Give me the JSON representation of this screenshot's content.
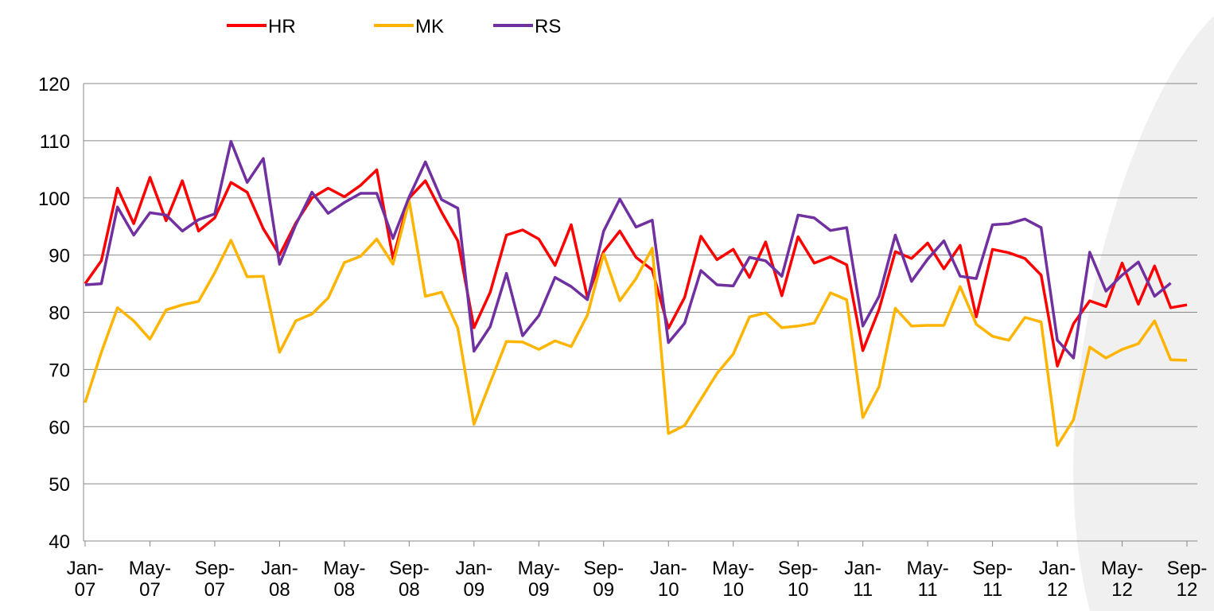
{
  "chart_data": {
    "type": "line",
    "categories": [
      "Jan-07",
      null,
      null,
      null,
      "May-07",
      null,
      null,
      null,
      "Sep-07",
      null,
      null,
      null,
      "Jan-08",
      null,
      null,
      null,
      "May-08",
      null,
      null,
      null,
      "Sep-08",
      null,
      null,
      null,
      "Jan-09",
      null,
      null,
      null,
      "May-09",
      null,
      null,
      null,
      "Sep-09",
      null,
      null,
      null,
      "Jan-10",
      null,
      null,
      null,
      "May-10",
      null,
      null,
      null,
      "Sep-10",
      null,
      null,
      null,
      "Jan-11",
      null,
      null,
      null,
      "May-11",
      null,
      null,
      null,
      "Sep-11",
      null,
      null,
      null,
      "Jan-12",
      null,
      null,
      null,
      "May-12",
      null,
      null,
      null,
      "Sep-12"
    ],
    "series": [
      {
        "name": "HR",
        "color": "#ff0000",
        "values": [
          85,
          89,
          101.7,
          95.5,
          103.6,
          96,
          103,
          94.2,
          96.5,
          102.7,
          101,
          94.6,
          90,
          95.6,
          100,
          101.7,
          100.2,
          102.2,
          104.9,
          89.4,
          100,
          103,
          97.5,
          92.5,
          77.3,
          83.5,
          93.5,
          94.4,
          92.8,
          88.2,
          95.3,
          82.6,
          90.6,
          94.2,
          89.6,
          87.4,
          77.2,
          82.6,
          93.3,
          89.2,
          91,
          86.1,
          92.3,
          82.9,
          93.2,
          88.6,
          89.7,
          88.3,
          73.3,
          80.5,
          90.6,
          89.4,
          92.1,
          87.6,
          91.7,
          79.2,
          91,
          90.4,
          89.4,
          86.5,
          70.6,
          78,
          82,
          81,
          88.6,
          81.4,
          88.1,
          80.8,
          81.3
        ]
      },
      {
        "name": "MK",
        "color": "#ffb400",
        "values": [
          64.2,
          73,
          80.8,
          78.5,
          75.3,
          80.4,
          81.3,
          81.9,
          86.9,
          92.6,
          86.2,
          86.3,
          73,
          78.5,
          79.7,
          82.5,
          88.7,
          89.8,
          92.8,
          88.4,
          99.5,
          82.8,
          83.5,
          77.2,
          60.4,
          67.7,
          74.9,
          74.8,
          73.5,
          75,
          74,
          79.5,
          90.2,
          82,
          85.9,
          91.2,
          58.8,
          60.2,
          64.8,
          69.3,
          72.7,
          79.2,
          79.9,
          77.3,
          77.6,
          78.1,
          83.4,
          82.2,
          61.6,
          67,
          80.7,
          77.6,
          77.7,
          77.7,
          84.5,
          77.9,
          75.8,
          75.1,
          79.1,
          78.3,
          56.7,
          61.2,
          73.9,
          72,
          73.5,
          74.5,
          78.5,
          71.7,
          71.6
        ]
      },
      {
        "name": "RS",
        "color": "#7030a0",
        "values": [
          84.8,
          85,
          98.4,
          93.5,
          97.4,
          97,
          94.2,
          96.2,
          97.2,
          109.9,
          102.7,
          106.9,
          88.4,
          95.3,
          101,
          97.3,
          99.2,
          100.8,
          100.8,
          92.9,
          100.2,
          106.3,
          99.7,
          98.2,
          73.2,
          77.5,
          86.8,
          75.9,
          79.4,
          86.1,
          84.5,
          82.2,
          94.2,
          99.8,
          94.9,
          96.1,
          74.7,
          78.1,
          87.3,
          84.8,
          84.6,
          89.6,
          89,
          86.3,
          97,
          96.5,
          94.3,
          94.8,
          77.6,
          82.8,
          93.5,
          85.4,
          89.3,
          92.5,
          86.3,
          85.9,
          95.3,
          95.5,
          96.3,
          94.8,
          75.1,
          72,
          90.5,
          83.7,
          86.5,
          88.8,
          82.8,
          85.1,
          null
        ]
      }
    ],
    "ylim": [
      40,
      120
    ],
    "yticks": [
      40,
      50,
      60,
      70,
      80,
      90,
      100,
      110,
      120
    ],
    "grid": true,
    "legend": "top"
  }
}
